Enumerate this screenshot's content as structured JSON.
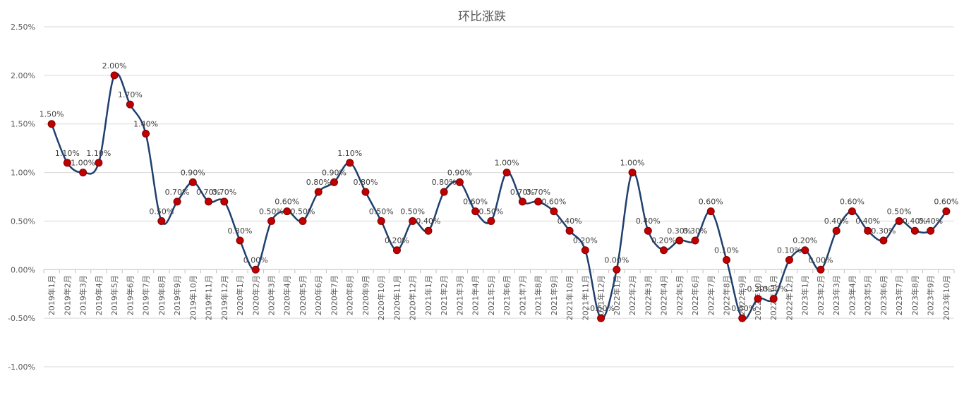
{
  "chart_data": {
    "type": "line",
    "title": "环比涨跌",
    "y_ticks": [
      "2.50%",
      "2.00%",
      "1.50%",
      "1.00%",
      "0.50%",
      "0.00%",
      "-0.50%",
      "-1.00%"
    ],
    "ylim": [
      -1.0,
      2.5
    ],
    "grid": true,
    "smooth": true,
    "colors": {
      "line": "#1f3f6e",
      "marker": "#c00000"
    },
    "categories": [
      "2019年1月",
      "2019年2月",
      "2019年3月",
      "2019年4月",
      "2019年5月",
      "2019年6月",
      "2019年7月",
      "2019年8月",
      "2019年9月",
      "2019年10月",
      "2019年11月",
      "2019年12月",
      "2020年1月",
      "2020年2月",
      "2020年3月",
      "2020年4月",
      "2020年5月",
      "2020年6月",
      "2020年7月",
      "2020年8月",
      "2020年9月",
      "2020年10月",
      "2020年11月",
      "2020年12月",
      "2021年1月",
      "2021年2月",
      "2021年3月",
      "2021年4月",
      "2021年5月",
      "2021年6月",
      "2021年7月",
      "2021年8月",
      "2021年9月",
      "2021年10月",
      "2021年11月",
      "2021年12月",
      "2022年1月",
      "2022年2月",
      "2022年3月",
      "2022年4月",
      "2022年5月",
      "2022年6月",
      "2022年7月",
      "2022年8月",
      "2022年9月",
      "2022年10月",
      "2022年11月",
      "2022年12月",
      "2023年1月",
      "2023年2月",
      "2023年3月",
      "2023年4月",
      "2023年5月",
      "2023年6月",
      "2023年7月",
      "2023年8月",
      "2023年9月",
      "2023年10月"
    ],
    "values": [
      1.5,
      1.1,
      1.0,
      1.1,
      2.0,
      1.7,
      1.4,
      0.5,
      0.7,
      0.9,
      0.7,
      0.7,
      0.3,
      0.0,
      0.5,
      0.6,
      0.5,
      0.8,
      0.9,
      1.1,
      0.8,
      0.5,
      0.2,
      0.5,
      0.4,
      0.8,
      0.9,
      0.6,
      0.5,
      1.0,
      0.7,
      0.7,
      0.6,
      0.4,
      0.2,
      -0.5,
      0.0,
      1.0,
      0.4,
      0.2,
      0.3,
      0.3,
      0.6,
      0.1,
      -0.5,
      -0.3,
      -0.3,
      0.1,
      0.2,
      0.0,
      0.4,
      0.6,
      0.4,
      0.3,
      0.5,
      0.4,
      0.4,
      0.6
    ],
    "labels": [
      "1.50%",
      "1.10%",
      "1.00%",
      "1.10%",
      "2.00%",
      "1.70%",
      "1.40%",
      "0.50%",
      "0.70%",
      "0.90%",
      "0.70%",
      "0.70%",
      "0.30%",
      "0.00%",
      "0.50%",
      "0.60%",
      "0.50%",
      "0.80%",
      "0.90%",
      "1.10%",
      "0.80%",
      "0.50%",
      "0.20%",
      "0.50%",
      "0.40%",
      "0.80%",
      "0.90%",
      "0.60%",
      "0.50%",
      "1.00%",
      "0.70%",
      "0.70%",
      "0.60%",
      "0.40%",
      "0.20%",
      "-0.50%",
      "0.00%",
      "1.00%",
      "0.40%",
      "0.20%",
      "0.30%",
      "0.30%",
      "0.60%",
      "0.10%",
      "-0.50%",
      "-0.30%",
      "-0.30%",
      "0.10%",
      "0.20%",
      "0.00%",
      "0.40%",
      "0.60%",
      "0.40%",
      "0.30%",
      "0.50%",
      "0.40%",
      "0.40%",
      "0.60%"
    ]
  }
}
